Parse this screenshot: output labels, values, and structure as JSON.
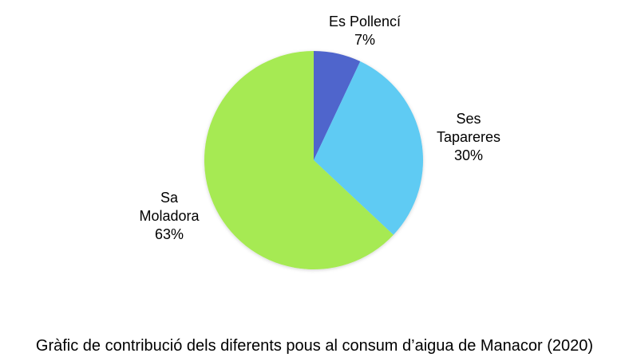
{
  "chart_data": {
    "type": "pie",
    "categories": [
      "Es Pollencí",
      "Ses Tapareres",
      "Sa Moladora"
    ],
    "values": [
      7,
      30,
      63
    ],
    "value_labels": [
      "7%",
      "30%",
      "63%"
    ],
    "label_lines": [
      [
        "Es Pollencí"
      ],
      [
        "Ses",
        "Tapareres"
      ],
      [
        "Sa",
        "Moladora"
      ]
    ],
    "colors": [
      "#5065cc",
      "#5ecbf3",
      "#a6ea52"
    ],
    "start_angle_deg": 0,
    "direction": "clockwise",
    "legend": "none"
  },
  "caption": "Gràfic de contribució dels diferents pous al consum d’aigua de Manacor (2020)"
}
